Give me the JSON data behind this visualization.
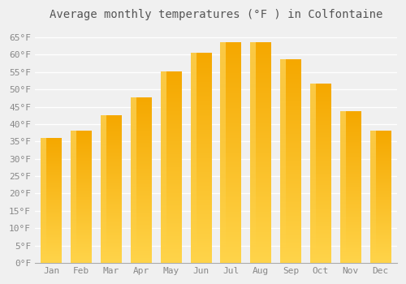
{
  "title": "Average monthly temperatures (°F ) in Colfontaine",
  "months": [
    "Jan",
    "Feb",
    "Mar",
    "Apr",
    "May",
    "Jun",
    "Jul",
    "Aug",
    "Sep",
    "Oct",
    "Nov",
    "Dec"
  ],
  "values": [
    36,
    38,
    42.5,
    47.5,
    55,
    60.5,
    63.5,
    63.5,
    58.5,
    51.5,
    43.5,
    38
  ],
  "bar_color_bottom": "#F5A800",
  "bar_color_top": "#FFD44A",
  "bar_color_highlight": "#FFE680",
  "background_color": "#f0f0f0",
  "grid_color": "#ffffff",
  "ylim": [
    0,
    68
  ],
  "yticks": [
    0,
    5,
    10,
    15,
    20,
    25,
    30,
    35,
    40,
    45,
    50,
    55,
    60,
    65
  ],
  "ytick_labels": [
    "0°F",
    "5°F",
    "10°F",
    "15°F",
    "20°F",
    "25°F",
    "30°F",
    "35°F",
    "40°F",
    "45°F",
    "50°F",
    "55°F",
    "60°F",
    "65°F"
  ],
  "title_fontsize": 10,
  "tick_fontsize": 8,
  "bar_width": 0.7,
  "figsize": [
    5.0,
    3.5
  ],
  "dpi": 100
}
